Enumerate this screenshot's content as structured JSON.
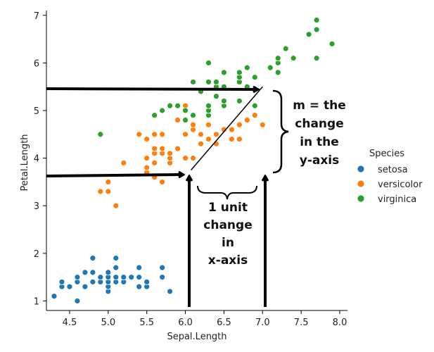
{
  "chart_data": {
    "type": "scatter",
    "xlabel": "Sepal.Length",
    "ylabel": "Petal.Length",
    "xlim": [
      4.2,
      8.1
    ],
    "ylim": [
      0.8,
      7.1
    ],
    "x_ticks": [
      "4.5",
      "5.0",
      "5.5",
      "6.0",
      "6.5",
      "7.0",
      "7.5",
      "8.0"
    ],
    "y_ticks": [
      "1",
      "2",
      "3",
      "4",
      "5",
      "6",
      "7"
    ],
    "grid": false,
    "legend": {
      "title": "Species",
      "placement": "right"
    },
    "series": [
      {
        "name": "setosa",
        "color": "#1f77b4",
        "points": [
          [
            4.3,
            1.1
          ],
          [
            4.4,
            1.3
          ],
          [
            4.4,
            1.4
          ],
          [
            4.5,
            1.3
          ],
          [
            4.6,
            1.0
          ],
          [
            4.6,
            1.4
          ],
          [
            4.6,
            1.5
          ],
          [
            4.7,
            1.3
          ],
          [
            4.7,
            1.6
          ],
          [
            4.8,
            1.4
          ],
          [
            4.8,
            1.6
          ],
          [
            4.8,
            1.9
          ],
          [
            4.9,
            1.4
          ],
          [
            4.9,
            1.5
          ],
          [
            5.0,
            1.2
          ],
          [
            5.0,
            1.3
          ],
          [
            5.0,
            1.4
          ],
          [
            5.0,
            1.5
          ],
          [
            5.0,
            1.6
          ],
          [
            5.1,
            1.4
          ],
          [
            5.1,
            1.5
          ],
          [
            5.1,
            1.7
          ],
          [
            5.1,
            1.9
          ],
          [
            5.2,
            1.4
          ],
          [
            5.2,
            1.5
          ],
          [
            5.3,
            1.5
          ],
          [
            5.4,
            1.3
          ],
          [
            5.4,
            1.5
          ],
          [
            5.4,
            1.7
          ],
          [
            5.5,
            1.3
          ],
          [
            5.5,
            1.4
          ],
          [
            5.7,
            1.5
          ],
          [
            5.7,
            1.7
          ],
          [
            5.8,
            1.2
          ]
        ]
      },
      {
        "name": "versicolor",
        "color": "#ff7f0e",
        "points": [
          [
            4.9,
            3.3
          ],
          [
            5.0,
            3.3
          ],
          [
            5.0,
            3.5
          ],
          [
            5.1,
            3.0
          ],
          [
            5.2,
            3.9
          ],
          [
            5.4,
            4.5
          ],
          [
            5.5,
            3.7
          ],
          [
            5.5,
            3.8
          ],
          [
            5.5,
            4.0
          ],
          [
            5.5,
            4.4
          ],
          [
            5.6,
            3.6
          ],
          [
            5.6,
            3.9
          ],
          [
            5.6,
            4.1
          ],
          [
            5.6,
            4.2
          ],
          [
            5.6,
            4.5
          ],
          [
            5.7,
            3.5
          ],
          [
            5.7,
            4.1
          ],
          [
            5.7,
            4.2
          ],
          [
            5.7,
            4.5
          ],
          [
            5.8,
            3.9
          ],
          [
            5.8,
            4.0
          ],
          [
            5.8,
            4.1
          ],
          [
            5.9,
            4.2
          ],
          [
            5.9,
            4.8
          ],
          [
            6.0,
            4.0
          ],
          [
            6.0,
            4.5
          ],
          [
            6.0,
            5.1
          ],
          [
            6.1,
            4.0
          ],
          [
            6.1,
            4.6
          ],
          [
            6.1,
            4.7
          ],
          [
            6.2,
            4.3
          ],
          [
            6.2,
            4.5
          ],
          [
            6.3,
            4.4
          ],
          [
            6.3,
            4.7
          ],
          [
            6.3,
            4.9
          ],
          [
            6.4,
            4.3
          ],
          [
            6.4,
            4.5
          ],
          [
            6.5,
            4.6
          ],
          [
            6.6,
            4.4
          ],
          [
            6.6,
            4.6
          ],
          [
            6.7,
            4.4
          ],
          [
            6.7,
            4.7
          ],
          [
            6.8,
            4.8
          ],
          [
            6.9,
            4.9
          ],
          [
            7.0,
            4.7
          ]
        ]
      },
      {
        "name": "virginica",
        "color": "#2ca02c",
        "points": [
          [
            4.9,
            4.5
          ],
          [
            5.6,
            4.9
          ],
          [
            5.7,
            5.0
          ],
          [
            5.8,
            5.1
          ],
          [
            5.9,
            5.1
          ],
          [
            6.0,
            4.8
          ],
          [
            6.0,
            5.0
          ],
          [
            6.1,
            4.9
          ],
          [
            6.1,
            5.6
          ],
          [
            6.2,
            5.4
          ],
          [
            6.3,
            4.9
          ],
          [
            6.3,
            5.0
          ],
          [
            6.3,
            5.1
          ],
          [
            6.3,
            5.6
          ],
          [
            6.3,
            6.0
          ],
          [
            6.4,
            5.3
          ],
          [
            6.4,
            5.5
          ],
          [
            6.4,
            5.6
          ],
          [
            6.5,
            5.1
          ],
          [
            6.5,
            5.2
          ],
          [
            6.5,
            5.5
          ],
          [
            6.5,
            5.8
          ],
          [
            6.7,
            5.2
          ],
          [
            6.7,
            5.6
          ],
          [
            6.7,
            5.7
          ],
          [
            6.7,
            5.8
          ],
          [
            6.8,
            5.5
          ],
          [
            6.8,
            5.9
          ],
          [
            6.9,
            5.1
          ],
          [
            6.9,
            5.7
          ],
          [
            7.1,
            5.9
          ],
          [
            7.2,
            5.8
          ],
          [
            7.2,
            6.0
          ],
          [
            7.2,
            6.1
          ],
          [
            7.3,
            6.3
          ],
          [
            7.4,
            6.1
          ],
          [
            7.6,
            6.6
          ],
          [
            7.7,
            6.1
          ],
          [
            7.7,
            6.7
          ],
          [
            7.7,
            6.9
          ],
          [
            7.9,
            6.4
          ]
        ]
      }
    ],
    "annotations": {
      "slope_text": [
        "m = the",
        "change",
        "in the",
        "y-axis"
      ],
      "run_text": [
        "1 unit",
        "change",
        "in",
        "x-axis"
      ],
      "slope_line": {
        "from": [
          6.0,
          3.6
        ],
        "to": [
          7.0,
          5.5
        ]
      }
    }
  }
}
